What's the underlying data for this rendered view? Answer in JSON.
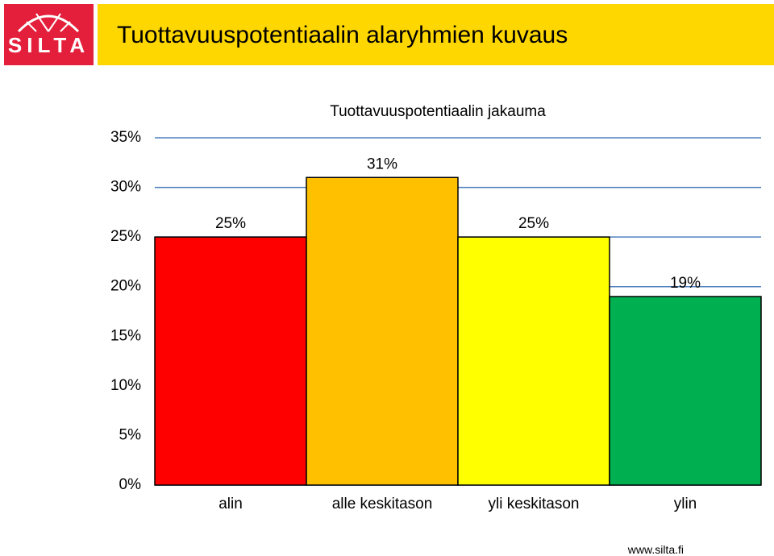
{
  "header": {
    "logo": "SILTA",
    "title": "Tuottavuuspotentiaalin alaryhmien kuvaus"
  },
  "chart_data": {
    "type": "bar",
    "title": "Tuottavuuspotentiaalin jakauma",
    "categories": [
      "alin",
      "alle keskitason",
      "yli keskitason",
      "ylin"
    ],
    "values": [
      25,
      31,
      25,
      19
    ],
    "value_labels": [
      "25%",
      "31%",
      "25%",
      "19%"
    ],
    "colors": [
      "#ff0000",
      "#ffc000",
      "#ffff00",
      "#00b050"
    ],
    "ylim": [
      0,
      35
    ],
    "yticks": [
      {
        "value": 0,
        "label": "0%"
      },
      {
        "value": 5,
        "label": "5%"
      },
      {
        "value": 10,
        "label": "10%"
      },
      {
        "value": 15,
        "label": "15%"
      },
      {
        "value": 20,
        "label": "20%"
      },
      {
        "value": 25,
        "label": "25%"
      },
      {
        "value": 30,
        "label": "30%"
      },
      {
        "value": 35,
        "label": "35%"
      }
    ],
    "grid": true,
    "grid_color": "#4f81bd"
  },
  "footer": {
    "url": "www.silta.fi"
  }
}
